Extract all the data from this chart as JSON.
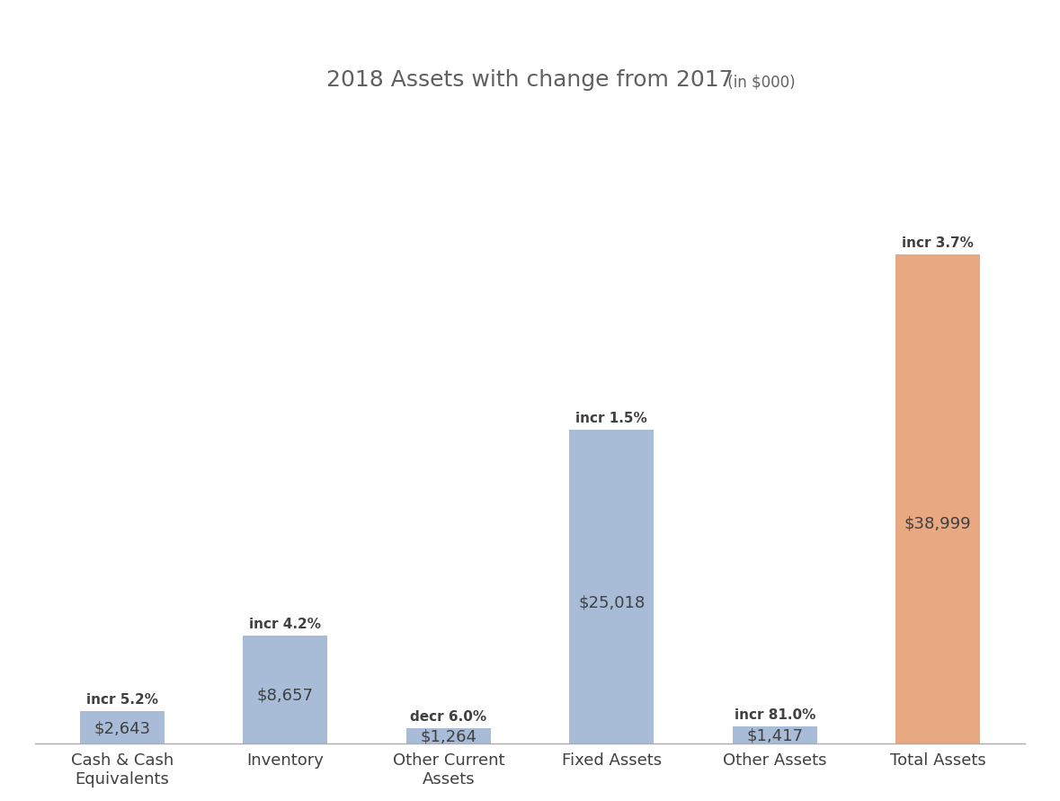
{
  "title_main": "2018 Assets with change from 2017",
  "title_sub": " (in $000)",
  "categories": [
    "Cash & Cash\nEquivalents",
    "Inventory",
    "Other Current\nAssets",
    "Fixed Assets",
    "Other Assets",
    "Total Assets"
  ],
  "values": [
    2643,
    8657,
    1264,
    25018,
    1417,
    38999
  ],
  "bar_colors": [
    "#a8bcd8",
    "#a8bcd8",
    "#a8bcd8",
    "#a8bcd8",
    "#a8bcd8",
    "#e8a882"
  ],
  "change_labels": [
    "incr 5.2%",
    "incr 4.2%",
    "decr 6.0%",
    "incr 1.5%",
    "incr 81.0%",
    "incr 3.7%"
  ],
  "value_labels": [
    "$2,643",
    "$8,657",
    "$1,264",
    "$25,018",
    "$1,417",
    "$38,999"
  ],
  "ylim": [
    0,
    50000
  ],
  "background_color": "#ffffff",
  "bar_text_color": "#404040",
  "title_color": "#606060",
  "title_main_fontsize": 18,
  "title_sub_fontsize": 12,
  "bar_label_fontsize": 13,
  "change_label_fontsize": 11,
  "tick_fontsize": 13,
  "bar_width": 0.52
}
